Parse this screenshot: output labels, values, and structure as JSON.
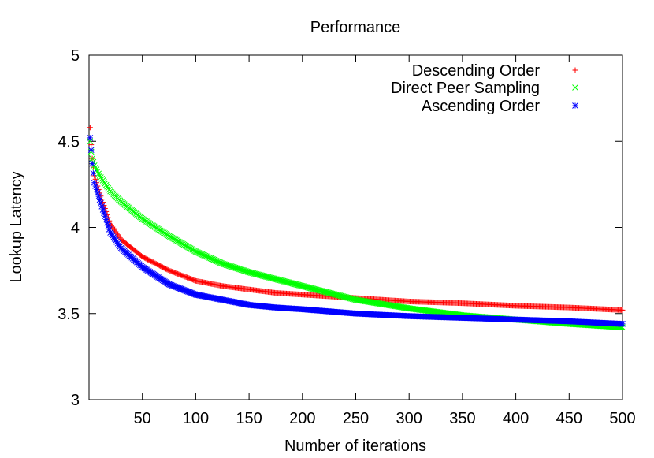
{
  "chart_data": {
    "type": "scatter",
    "title": "Performance",
    "xlabel": "Number of iterations",
    "ylabel": "Lookup Latency",
    "xlim": [
      0,
      500
    ],
    "ylim": [
      3,
      5
    ],
    "xticks": [
      50,
      100,
      150,
      200,
      250,
      300,
      350,
      400,
      450,
      500
    ],
    "yticks": [
      3,
      3.5,
      4,
      4.5,
      5
    ],
    "ytick_labels": [
      "3",
      "3.5",
      "4",
      "4.5",
      "5"
    ],
    "xtick_labels": [
      "50",
      "100",
      "150",
      "200",
      "250",
      "300",
      "350",
      "400",
      "450",
      "500"
    ],
    "grid": false,
    "legend_position": "top-right",
    "series": [
      {
        "name": "Descending Order",
        "marker": "plus",
        "color": "#ff0000",
        "x": [
          1,
          2,
          3,
          5,
          10,
          20,
          30,
          50,
          75,
          100,
          125,
          150,
          175,
          200,
          250,
          300,
          350,
          400,
          450,
          500
        ],
        "y": [
          4.58,
          4.48,
          4.4,
          4.3,
          4.2,
          4.02,
          3.93,
          3.83,
          3.75,
          3.69,
          3.66,
          3.64,
          3.62,
          3.61,
          3.59,
          3.57,
          3.56,
          3.545,
          3.535,
          3.52
        ]
      },
      {
        "name": "Direct Peer Sampling",
        "marker": "cross",
        "color": "#00ff00",
        "x": [
          1,
          2,
          3,
          5,
          10,
          20,
          30,
          50,
          75,
          100,
          125,
          150,
          175,
          200,
          250,
          300,
          350,
          400,
          450,
          500
        ],
        "y": [
          4.5,
          4.44,
          4.4,
          4.36,
          4.3,
          4.21,
          4.15,
          4.05,
          3.95,
          3.86,
          3.79,
          3.74,
          3.7,
          3.66,
          3.58,
          3.53,
          3.49,
          3.465,
          3.44,
          3.42
        ]
      },
      {
        "name": "Ascending Order",
        "marker": "star",
        "color": "#0000ff",
        "x": [
          1,
          2,
          3,
          5,
          10,
          20,
          30,
          50,
          75,
          100,
          125,
          150,
          175,
          200,
          250,
          300,
          350,
          400,
          450,
          500
        ],
        "y": [
          4.52,
          4.45,
          4.37,
          4.26,
          4.16,
          3.97,
          3.88,
          3.77,
          3.67,
          3.61,
          3.58,
          3.55,
          3.535,
          3.525,
          3.5,
          3.485,
          3.475,
          3.465,
          3.455,
          3.44
        ]
      }
    ]
  }
}
